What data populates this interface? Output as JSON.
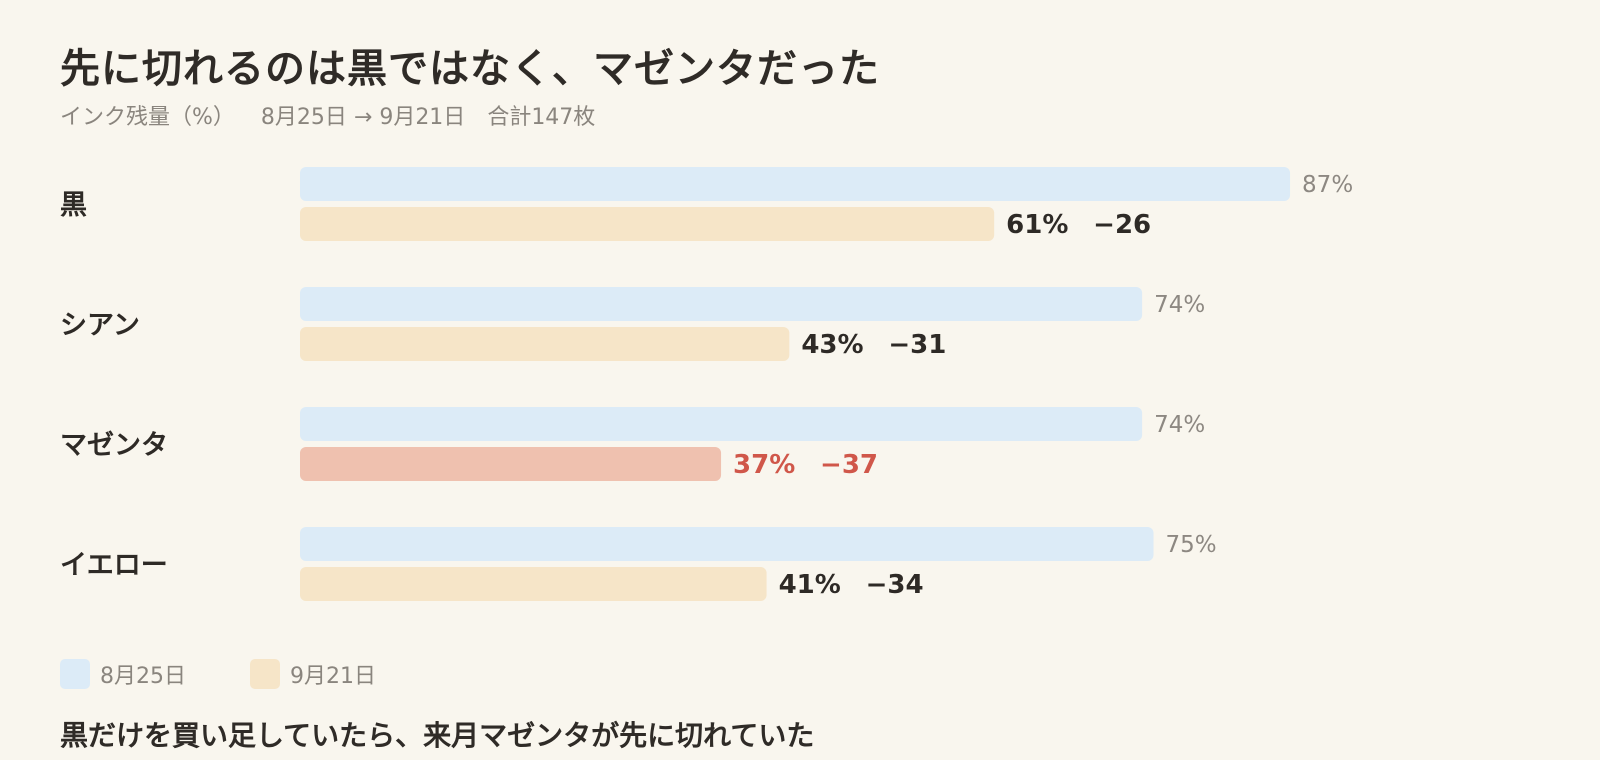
{
  "title": "先に切れるのは黒ではなく、マゼンタだった",
  "subtitle": {
    "unit": "インク残量（%）",
    "period": "8月25日 → 9月21日",
    "total": "合計147枚"
  },
  "colors": {
    "before": "#dcebf7",
    "after": "#f6e5c8",
    "highlight_bar": "#efc1af",
    "highlight_text": "#d0574a"
  },
  "legend": [
    {
      "label": "8月25日",
      "color": "#dcebf7"
    },
    {
      "label": "9月21日",
      "color": "#f6e5c8"
    }
  ],
  "chart_data": {
    "type": "bar",
    "orientation": "horizontal",
    "categories": [
      "黒",
      "シアン",
      "マゼンタ",
      "イエロー"
    ],
    "series": [
      {
        "name": "8月25日",
        "values": [
          87,
          74,
          74,
          75
        ]
      },
      {
        "name": "9月21日",
        "values": [
          61,
          43,
          37,
          41
        ]
      }
    ],
    "value_labels_before": [
      "87%",
      "74%",
      "74%",
      "75%"
    ],
    "value_labels_after": [
      "61%",
      "43%",
      "37%",
      "41%"
    ],
    "change_labels": [
      "−26",
      "−31",
      "−37",
      "−34"
    ],
    "highlight_category": "マゼンタ",
    "xlim": [
      0,
      100
    ],
    "legend_position": "bottom-left",
    "grid": false
  },
  "footnote": "黒だけを買い足していたら、来月マゼンタが先に切れていた"
}
